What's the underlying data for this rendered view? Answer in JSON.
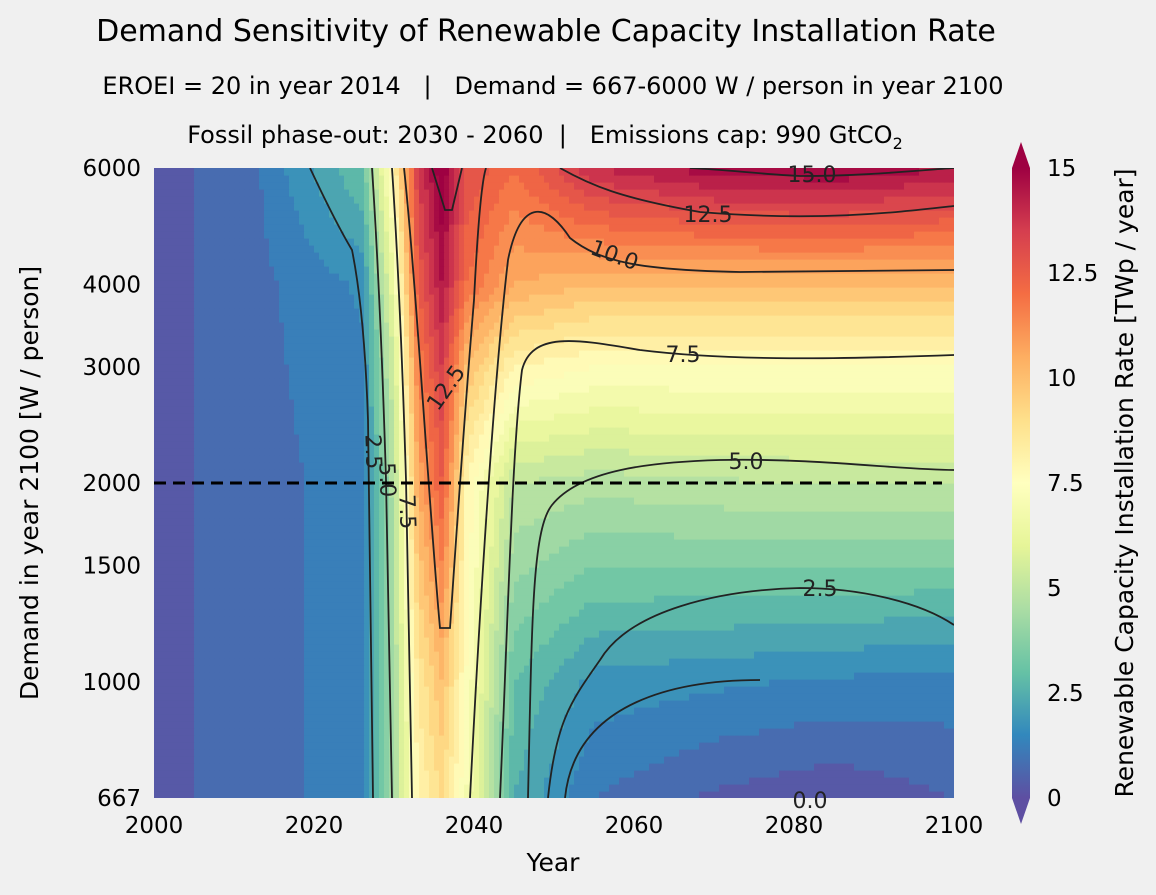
{
  "chart_data": {
    "type": "heatmap",
    "title": "Demand Sensitivity of Renewable Capacity Installation Rate",
    "subtitle_1": "EROEI = 20 in year 2014   |   Demand = 667-6000 W / person in year 2100",
    "subtitle_2_prefix": "Fossil phase-out: 2030 - 2060  |   Emissions cap: 990 GtCO",
    "subtitle_2_subscript": "2",
    "xlabel": "Year",
    "ylabel": "Demand in year 2100 [W / person]",
    "xlim": [
      2000,
      2100
    ],
    "ylim": [
      667,
      6000
    ],
    "y_scale": "log",
    "x_ticks": [
      "2000",
      "2020",
      "2040",
      "2060",
      "2080",
      "2100"
    ],
    "y_ticks": [
      "667",
      "1000",
      "1500",
      "2000",
      "3000",
      "4000",
      "6000"
    ],
    "reference_line": {
      "demand": 2000,
      "style": "dashed",
      "color": "#000000"
    },
    "colorbar": {
      "label": "Renewable Capacity Installation Rate [TWp / year]",
      "range": [
        0,
        15
      ],
      "ticks": [
        "0",
        "2.5",
        "5",
        "7.5",
        "10",
        "12.5",
        "15"
      ],
      "levels": 30,
      "extend": "both",
      "colormap": "Spectral_r"
    },
    "contour_levels": [
      2.5,
      5.0,
      7.5,
      10.0,
      12.5,
      15.0
    ],
    "contour_labels": [
      "2.5",
      "5.0",
      "7.5",
      "10.0",
      "12.5",
      "15.0",
      "12.5",
      "2.5",
      "5.0",
      "7.5",
      "2.5",
      "0.0"
    ],
    "sample_profiles": [
      {
        "demand": 667,
        "years": [
          2000,
          2012,
          2026,
          2030,
          2033,
          2036,
          2039,
          2045,
          2055,
          2070,
          2085,
          2100
        ],
        "values": [
          0.3,
          0.8,
          1.2,
          4.5,
          8.0,
          9.0,
          7.0,
          2.5,
          1.0,
          0.4,
          0.1,
          0.5
        ]
      },
      {
        "demand": 1000,
        "years": [
          2000,
          2012,
          2026,
          2030,
          2033,
          2036,
          2039,
          2045,
          2055,
          2070,
          2085,
          2100
        ],
        "values": [
          0.3,
          0.8,
          1.2,
          4.5,
          8.5,
          10.0,
          7.5,
          3.0,
          1.8,
          1.6,
          1.4,
          1.3
        ]
      },
      {
        "demand": 2000,
        "years": [
          2000,
          2012,
          2026,
          2030,
          2033,
          2036,
          2039,
          2045,
          2055,
          2070,
          2085,
          2100
        ],
        "values": [
          0.3,
          0.8,
          1.2,
          4.8,
          10.5,
          12.5,
          8.0,
          5.0,
          4.7,
          4.9,
          5.0,
          5.0
        ]
      },
      {
        "demand": 3000,
        "years": [
          2000,
          2012,
          2026,
          2030,
          2033,
          2036,
          2039,
          2045,
          2055,
          2070,
          2085,
          2100
        ],
        "values": [
          0.3,
          0.8,
          1.4,
          5.5,
          11.5,
          13.5,
          10.0,
          8.0,
          7.5,
          7.5,
          7.5,
          7.5
        ]
      },
      {
        "demand": 4000,
        "years": [
          2000,
          2012,
          2026,
          2030,
          2033,
          2036,
          2039,
          2045,
          2055,
          2070,
          2085,
          2100
        ],
        "values": [
          0.3,
          0.8,
          1.6,
          6.5,
          12.5,
          14.5,
          12.0,
          10.5,
          10.0,
          10.0,
          10.0,
          10.0
        ]
      },
      {
        "demand": 6000,
        "years": [
          2000,
          2012,
          2026,
          2030,
          2033,
          2036,
          2039,
          2045,
          2055,
          2070,
          2085,
          2100
        ],
        "values": [
          0.3,
          0.8,
          3.0,
          8.0,
          13.5,
          15.5,
          13.0,
          12.0,
          14.0,
          14.8,
          15.0,
          14.5
        ]
      }
    ]
  }
}
